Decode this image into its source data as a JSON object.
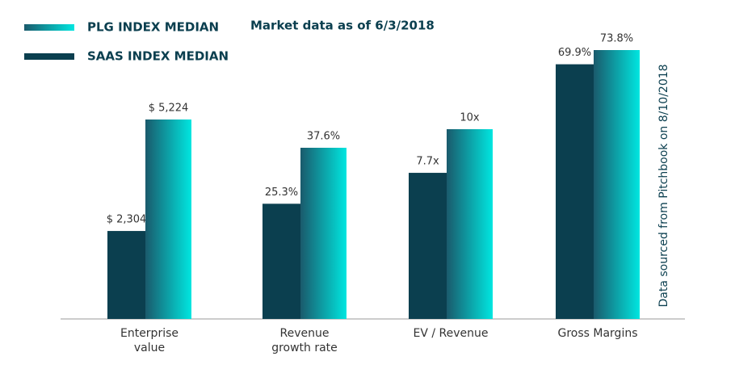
{
  "chart_data": {
    "type": "bar",
    "subtitle": "Market data as of 6/3/2018",
    "annotation": "Data sourced from Pitchbook on 8/10/2018",
    "categories": [
      "Enterprise value",
      "Revenue growth rate",
      "EV / Revenue",
      "Gross Margins"
    ],
    "series": [
      {
        "name": "SAAS INDEX MEDIAN",
        "color": "#0b3f4f",
        "values": [
          2304,
          25.3,
          7.7,
          69.9
        ],
        "value_labels": [
          "$ 2,304",
          "25.3%",
          "7.7x",
          "69.9%"
        ]
      },
      {
        "name": "PLG INDEX MEDIAN",
        "color": "#00e6e0",
        "values": [
          5224,
          37.6,
          10,
          73.8
        ],
        "value_labels": [
          "$ 5,224",
          "37.6%",
          "10x",
          "73.8%"
        ]
      }
    ]
  }
}
